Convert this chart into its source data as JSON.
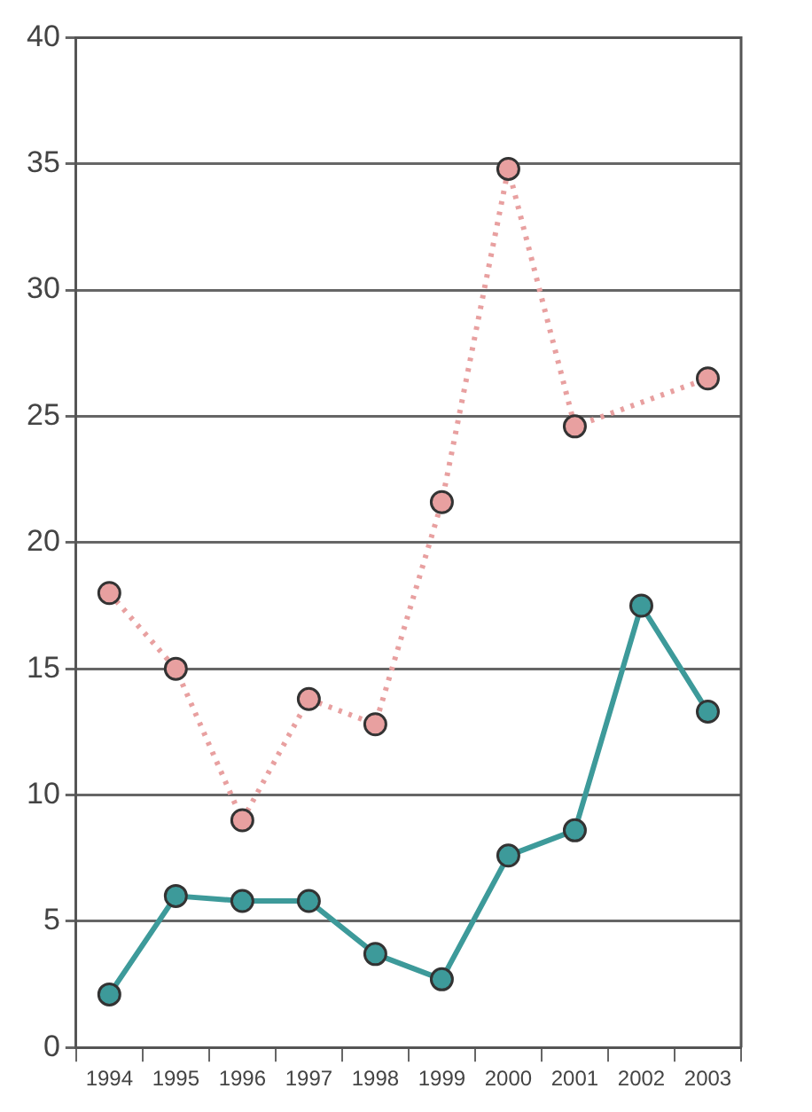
{
  "chart_data": {
    "type": "line",
    "categories": [
      "1994",
      "1995",
      "1996",
      "1997",
      "1998",
      "1999",
      "2000",
      "2001",
      "2002",
      "2003"
    ],
    "series": [
      {
        "color": "#e8a0a0",
        "line_style": "dotted",
        "values": [
          18,
          15,
          9,
          13.8,
          12.8,
          21.6,
          34.8,
          24.6,
          null,
          26.5
        ]
      },
      {
        "color": "#3d9a9a",
        "line_style": "solid",
        "values": [
          2.1,
          6,
          5.8,
          5.8,
          3.7,
          2.7,
          7.6,
          8.6,
          17.5,
          13.3
        ]
      }
    ],
    "ylim": [
      0,
      40
    ],
    "yticks": [
      0,
      5,
      10,
      15,
      20,
      25,
      30,
      35,
      40
    ],
    "grid": "y",
    "legend": false,
    "marker": "circle"
  }
}
